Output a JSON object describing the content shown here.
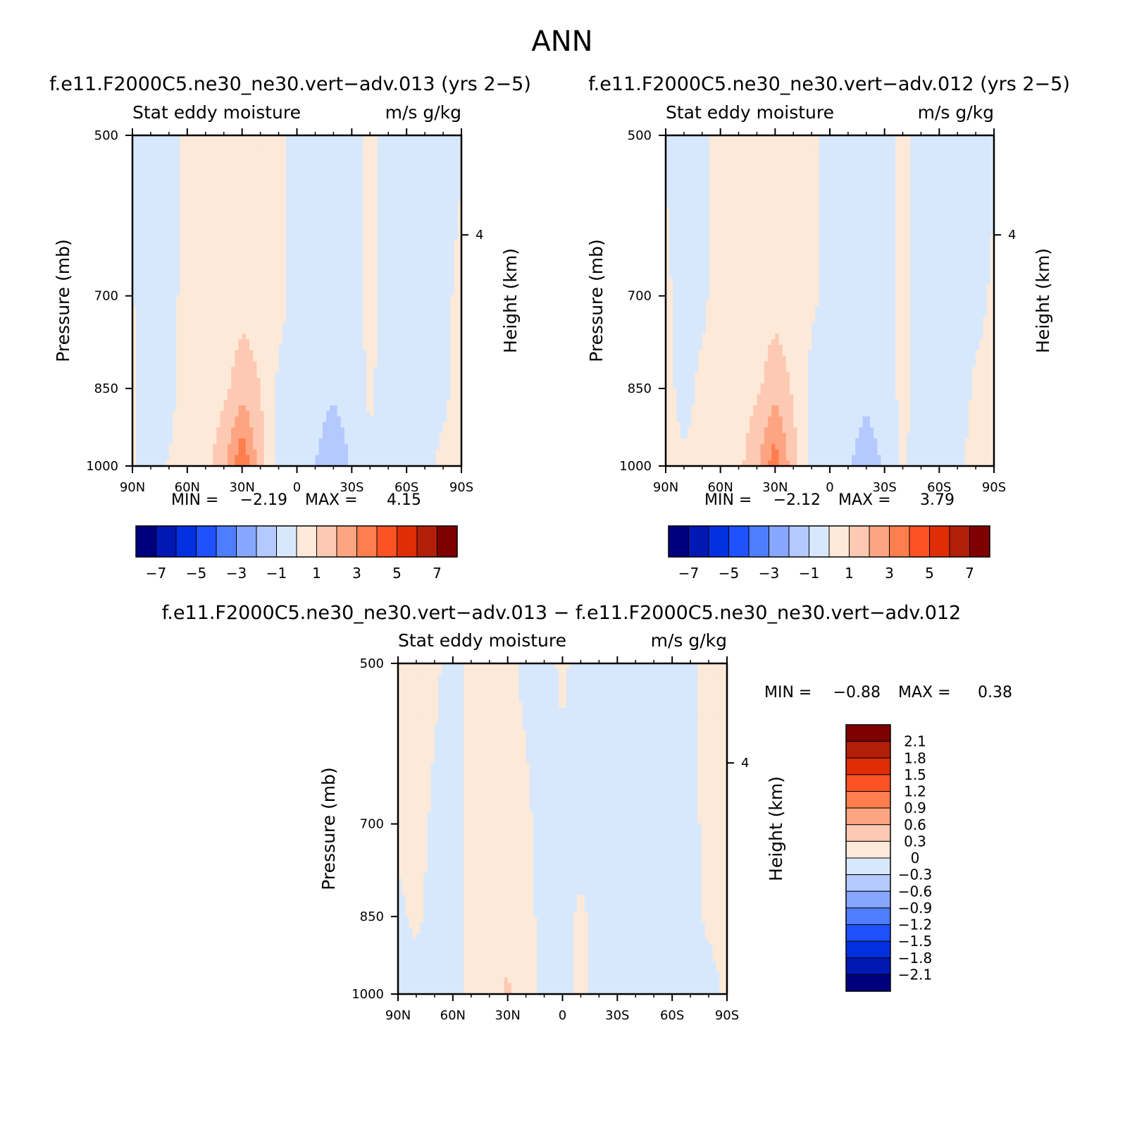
{
  "figure": {
    "title": "ANN"
  },
  "color_scales": {
    "main": [
      "#00007f",
      "#0018b4",
      "#0030e0",
      "#1f51ff",
      "#4f7dff",
      "#86a6ff",
      "#b4c9ff",
      "#d8e8fc",
      "#fde9d8",
      "#fdc9b2",
      "#fda582",
      "#fe7e4e",
      "#fe5224",
      "#df2d05",
      "#b21f08",
      "#7f0000"
    ],
    "diff": [
      "#00007f",
      "#0018b4",
      "#0030e0",
      "#1f51ff",
      "#4f7dff",
      "#86a6ff",
      "#b4c9ff",
      "#d8e8fc",
      "#fde9d8",
      "#fdc9b2",
      "#fda582",
      "#fe7e4e",
      "#fe5224",
      "#df2d05",
      "#b21f08",
      "#7f0000"
    ]
  },
  "chart_data": [
    {
      "type": "heatmap",
      "id": "case013",
      "title": "f.e11.F2000C5.ne30_ne30.vert−adv.013 (yrs 2−5)",
      "left_label": "Stat eddy moisture",
      "right_label": "m/s g/kg",
      "ylabel": "Pressure (mb)",
      "ylabel_right": "Height (km)",
      "x_ticks": [
        "90N",
        "60N",
        "30N",
        "0",
        "30S",
        "60S",
        "90S"
      ],
      "y_ticks": [
        "500",
        "700",
        "850",
        "1000"
      ],
      "y_right_ticks": [
        "4"
      ],
      "x_range": [
        90,
        -90
      ],
      "y_range": [
        500,
        1000
      ],
      "min_label": "MIN =",
      "min_value": "−2.19",
      "max_label": "MAX =",
      "max_value": "4.15",
      "colorbar_ticks": [
        "−7",
        "−5",
        "−3",
        "−1",
        "1",
        "3",
        "5",
        "7"
      ],
      "contour_levels": [
        -7,
        -6,
        -5,
        -4,
        -3,
        -2,
        -1,
        0,
        1,
        2,
        3,
        4,
        5,
        6,
        7
      ],
      "profiles": [
        {
          "lat": 90,
          "v": [
            0.0,
            0.05,
            0.1,
            0.1
          ]
        },
        {
          "lat": 80,
          "v": [
            -0.3,
            -0.5,
            -0.4,
            -0.3
          ]
        },
        {
          "lat": 70,
          "v": [
            -0.3,
            -0.4,
            -0.2,
            0.05
          ]
        },
        {
          "lat": 60,
          "v": [
            0.3,
            0.4,
            0.3,
            0.25
          ]
        },
        {
          "lat": 50,
          "v": [
            0.4,
            0.5,
            0.5,
            0.5
          ]
        },
        {
          "lat": 40,
          "v": [
            0.4,
            0.5,
            0.7,
            1.8
          ]
        },
        {
          "lat": 30,
          "v": [
            0.3,
            0.6,
            1.6,
            4.0
          ]
        },
        {
          "lat": 20,
          "v": [
            0.5,
            0.6,
            1.0,
            1.5
          ]
        },
        {
          "lat": 10,
          "v": [
            0.4,
            0.3,
            -0.2,
            -0.5
          ]
        },
        {
          "lat": 0,
          "v": [
            -0.4,
            -0.3,
            -0.5,
            -0.9
          ]
        },
        {
          "lat": -10,
          "v": [
            -0.4,
            -0.5,
            -0.6,
            -1.0
          ]
        },
        {
          "lat": -20,
          "v": [
            -0.5,
            -0.6,
            -0.9,
            -1.6
          ]
        },
        {
          "lat": -30,
          "v": [
            -0.4,
            -0.5,
            -0.6,
            -0.9
          ]
        },
        {
          "lat": -40,
          "v": [
            0.3,
            0.3,
            0.2,
            -0.2
          ]
        },
        {
          "lat": -50,
          "v": [
            -0.5,
            -0.6,
            -0.5,
            -0.5
          ]
        },
        {
          "lat": -60,
          "v": [
            -0.4,
            -0.5,
            -0.5,
            -0.9
          ]
        },
        {
          "lat": -70,
          "v": [
            -0.3,
            -0.4,
            -0.3,
            -0.3
          ]
        },
        {
          "lat": -80,
          "v": [
            -0.3,
            -0.2,
            -0.2,
            0.2
          ]
        },
        {
          "lat": -90,
          "v": [
            -0.1,
            0.2,
            0.3,
            0.4
          ]
        }
      ]
    },
    {
      "type": "heatmap",
      "id": "case012",
      "title": "f.e11.F2000C5.ne30_ne30.vert−adv.012 (yrs 2−5)",
      "left_label": "Stat eddy moisture",
      "right_label": "m/s g/kg",
      "ylabel": "Pressure (mb)",
      "ylabel_right": "Height (km)",
      "x_ticks": [
        "90N",
        "60N",
        "30N",
        "0",
        "30S",
        "60S",
        "90S"
      ],
      "y_ticks": [
        "500",
        "700",
        "850",
        "1000"
      ],
      "y_right_ticks": [
        "4"
      ],
      "x_range": [
        90,
        -90
      ],
      "y_range": [
        500,
        1000
      ],
      "min_label": "MIN =",
      "min_value": "−2.12",
      "max_label": "MAX =",
      "max_value": "3.79",
      "colorbar_ticks": [
        "−7",
        "−5",
        "−3",
        "−1",
        "1",
        "3",
        "5",
        "7"
      ],
      "contour_levels": [
        -7,
        -6,
        -5,
        -4,
        -3,
        -2,
        -1,
        0,
        1,
        2,
        3,
        4,
        5,
        6,
        7
      ],
      "profiles": [
        {
          "lat": 90,
          "v": [
            -0.1,
            0.2,
            0.3,
            0.3
          ]
        },
        {
          "lat": 80,
          "v": [
            -0.3,
            -0.4,
            -0.3,
            0.1
          ]
        },
        {
          "lat": 70,
          "v": [
            -0.3,
            -0.2,
            0.2,
            0.3
          ]
        },
        {
          "lat": 60,
          "v": [
            0.3,
            0.4,
            0.4,
            0.4
          ]
        },
        {
          "lat": 50,
          "v": [
            0.4,
            0.5,
            0.6,
            0.7
          ]
        },
        {
          "lat": 40,
          "v": [
            0.4,
            0.5,
            0.8,
            1.8
          ]
        },
        {
          "lat": 30,
          "v": [
            0.3,
            0.6,
            1.6,
            3.7
          ]
        },
        {
          "lat": 20,
          "v": [
            0.4,
            0.5,
            0.9,
            1.4
          ]
        },
        {
          "lat": 10,
          "v": [
            0.3,
            0.2,
            -0.3,
            -0.6
          ]
        },
        {
          "lat": 0,
          "v": [
            -0.3,
            -0.3,
            -0.5,
            -0.8
          ]
        },
        {
          "lat": -10,
          "v": [
            -0.4,
            -0.5,
            -0.6,
            -0.9
          ]
        },
        {
          "lat": -20,
          "v": [
            -0.4,
            -0.6,
            -0.8,
            -1.4
          ]
        },
        {
          "lat": -30,
          "v": [
            -0.4,
            -0.5,
            -0.6,
            -0.9
          ]
        },
        {
          "lat": -40,
          "v": [
            0.3,
            0.3,
            0.3,
            0.1
          ]
        },
        {
          "lat": -50,
          "v": [
            -0.4,
            -0.5,
            -0.5,
            -0.4
          ]
        },
        {
          "lat": -60,
          "v": [
            -0.3,
            -0.4,
            -0.5,
            -0.8
          ]
        },
        {
          "lat": -70,
          "v": [
            -0.3,
            -0.3,
            -0.3,
            -0.2
          ]
        },
        {
          "lat": -80,
          "v": [
            -0.2,
            -0.2,
            0.1,
            0.3
          ]
        },
        {
          "lat": -90,
          "v": [
            -0.1,
            0.1,
            0.2,
            0.3
          ]
        }
      ]
    },
    {
      "type": "heatmap",
      "id": "difference",
      "title": "f.e11.F2000C5.ne30_ne30.vert−adv.013 − f.e11.F2000C5.ne30_ne30.vert−adv.012",
      "left_label": "Stat eddy moisture",
      "right_label": "m/s g/kg",
      "ylabel": "Pressure (mb)",
      "ylabel_right": "Height (km)",
      "x_ticks": [
        "90N",
        "60N",
        "30N",
        "0",
        "30S",
        "60S",
        "90S"
      ],
      "y_ticks": [
        "500",
        "700",
        "850",
        "1000"
      ],
      "y_right_ticks": [
        "4"
      ],
      "x_range": [
        90,
        -90
      ],
      "y_range": [
        500,
        1000
      ],
      "min_label": "MIN =",
      "min_value": "−0.88",
      "max_label": "MAX =",
      "max_value": "0.38",
      "colorbar_ticks": [
        "2.1",
        "1.8",
        "1.5",
        "1.2",
        "0.9",
        "0.6",
        "0.3",
        "0",
        "−0.3",
        "−0.6",
        "−0.9",
        "−1.2",
        "−1.5",
        "−1.8",
        "−2.1"
      ],
      "contour_levels": [
        -2.1,
        -1.8,
        -1.5,
        -1.2,
        -0.9,
        -0.6,
        -0.3,
        0,
        0.3,
        0.6,
        0.9,
        1.2,
        1.5,
        1.8,
        2.1
      ],
      "profiles": [
        {
          "lat": 90,
          "v": [
            0.05,
            0.05,
            -0.05,
            -0.1
          ]
        },
        {
          "lat": 80,
          "v": [
            0.1,
            0.1,
            0.05,
            -0.1
          ]
        },
        {
          "lat": 70,
          "v": [
            0.05,
            -0.05,
            -0.1,
            -0.15
          ]
        },
        {
          "lat": 60,
          "v": [
            -0.1,
            -0.1,
            -0.1,
            -0.2
          ]
        },
        {
          "lat": 50,
          "v": [
            0.1,
            0.1,
            0.1,
            0.1
          ]
        },
        {
          "lat": 40,
          "v": [
            0.1,
            0.1,
            0.15,
            0.2
          ]
        },
        {
          "lat": 30,
          "v": [
            0.05,
            0.1,
            0.15,
            0.35
          ]
        },
        {
          "lat": 20,
          "v": [
            -0.05,
            0.05,
            0.1,
            0.15
          ]
        },
        {
          "lat": 10,
          "v": [
            -0.1,
            -0.1,
            -0.1,
            -0.1
          ]
        },
        {
          "lat": 0,
          "v": [
            0.05,
            -0.1,
            -0.1,
            -0.1
          ]
        },
        {
          "lat": -10,
          "v": [
            -0.1,
            -0.1,
            0.05,
            0.1
          ]
        },
        {
          "lat": -20,
          "v": [
            -0.1,
            -0.1,
            -0.1,
            -0.1
          ]
        },
        {
          "lat": -30,
          "v": [
            -0.1,
            -0.1,
            -0.1,
            -0.1
          ]
        },
        {
          "lat": -40,
          "v": [
            -0.1,
            -0.1,
            -0.1,
            -0.1
          ]
        },
        {
          "lat": -50,
          "v": [
            -0.1,
            -0.1,
            -0.15,
            -0.2
          ]
        },
        {
          "lat": -60,
          "v": [
            -0.1,
            -0.1,
            -0.1,
            -0.1
          ]
        },
        {
          "lat": -70,
          "v": [
            -0.05,
            -0.1,
            -0.1,
            -0.1
          ]
        },
        {
          "lat": -80,
          "v": [
            0.1,
            0.1,
            0.05,
            -0.1
          ]
        },
        {
          "lat": -90,
          "v": [
            0.1,
            0.1,
            0.1,
            0.05
          ]
        }
      ]
    }
  ]
}
